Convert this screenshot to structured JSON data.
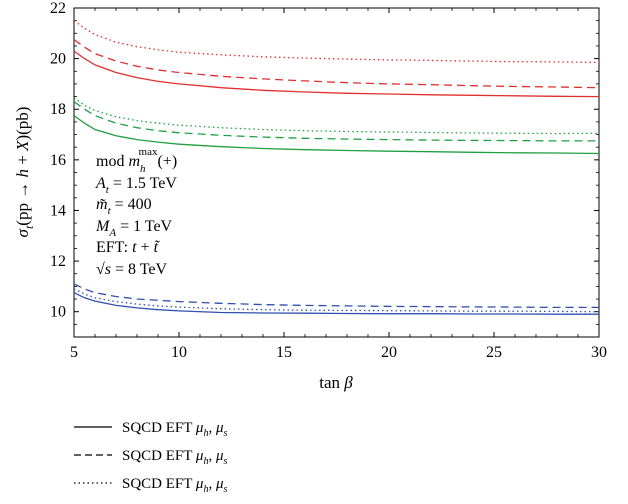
{
  "chart_data": {
    "type": "line",
    "xlabel": "tan β",
    "ylabel": "σ_t(pp → h + X)(pb)",
    "xlim": [
      5,
      30
    ],
    "ylim": [
      9,
      22
    ],
    "xticks": [
      5,
      10,
      15,
      20,
      25,
      30
    ],
    "yticks": [
      10,
      12,
      14,
      16,
      18,
      20,
      22
    ],
    "grid": false,
    "x": [
      5,
      5.5,
      6,
      7,
      8,
      9,
      10,
      12,
      14,
      16,
      18,
      20,
      22,
      24,
      26,
      28,
      30
    ],
    "series": [
      {
        "color": "#e03030",
        "dash": "solid",
        "values": [
          20.3,
          20.0,
          19.75,
          19.45,
          19.25,
          19.1,
          19.0,
          18.85,
          18.75,
          18.68,
          18.63,
          18.6,
          18.57,
          18.55,
          18.53,
          18.51,
          18.5
        ]
      },
      {
        "color": "#e03030",
        "dash": "dashed",
        "values": [
          20.75,
          20.45,
          20.2,
          19.9,
          19.7,
          19.55,
          19.45,
          19.3,
          19.2,
          19.12,
          19.05,
          19.0,
          18.97,
          18.93,
          18.9,
          18.88,
          18.85
        ]
      },
      {
        "color": "#e03030",
        "dash": "dotted",
        "values": [
          21.5,
          21.2,
          20.95,
          20.65,
          20.47,
          20.35,
          20.25,
          20.15,
          20.07,
          20.02,
          19.98,
          19.95,
          19.93,
          19.9,
          19.88,
          19.87,
          19.85
        ]
      },
      {
        "color": "#20a040",
        "dash": "solid",
        "values": [
          17.75,
          17.45,
          17.2,
          16.95,
          16.8,
          16.7,
          16.62,
          16.52,
          16.45,
          16.4,
          16.37,
          16.34,
          16.32,
          16.3,
          16.28,
          16.27,
          16.25
        ]
      },
      {
        "color": "#20a040",
        "dash": "dashed",
        "values": [
          18.3,
          18.0,
          17.75,
          17.45,
          17.27,
          17.15,
          17.07,
          16.97,
          16.9,
          16.85,
          16.82,
          16.8,
          16.78,
          16.77,
          16.76,
          16.75,
          16.75
        ]
      },
      {
        "color": "#20a040",
        "dash": "dotted",
        "values": [
          18.45,
          18.15,
          17.95,
          17.7,
          17.55,
          17.45,
          17.37,
          17.27,
          17.2,
          17.15,
          17.12,
          17.1,
          17.08,
          17.06,
          17.05,
          17.04,
          17.05
        ]
      },
      {
        "color": "#3050b0",
        "dash": "solid",
        "values": [
          10.75,
          10.55,
          10.42,
          10.25,
          10.15,
          10.08,
          10.03,
          9.97,
          9.95,
          9.94,
          9.93,
          9.92,
          9.92,
          9.91,
          9.91,
          9.9,
          9.9
        ]
      },
      {
        "color": "#3050b0",
        "dash": "dashed",
        "values": [
          11.1,
          10.9,
          10.75,
          10.6,
          10.5,
          10.45,
          10.4,
          10.33,
          10.28,
          10.25,
          10.23,
          10.21,
          10.2,
          10.19,
          10.18,
          10.17,
          10.17
        ]
      },
      {
        "color": "#3050b0",
        "dash": "dotted",
        "values": [
          10.9,
          10.7,
          10.55,
          10.4,
          10.3,
          10.23,
          10.18,
          10.12,
          10.08,
          10.06,
          10.05,
          10.04,
          10.03,
          10.02,
          10.02,
          10.01,
          10.0
        ]
      }
    ],
    "annotations": [
      "mod m_h^max(+)",
      "A_t = 1.5 TeV",
      "m̃_t = 400",
      "M_A = 1 TeV",
      "EFT: t + t̃",
      "√s = 8 TeV"
    ],
    "legend": {
      "placement": "bottom-left",
      "entries": [
        {
          "style": "solid",
          "label": "SQCD EFT μ_h, μ_s"
        },
        {
          "style": "dashed",
          "label": "SQCD EFT μ_h, μ_s"
        },
        {
          "style": "dotted",
          "label": "SQCD EFT μ_h, μ_s"
        }
      ]
    }
  }
}
